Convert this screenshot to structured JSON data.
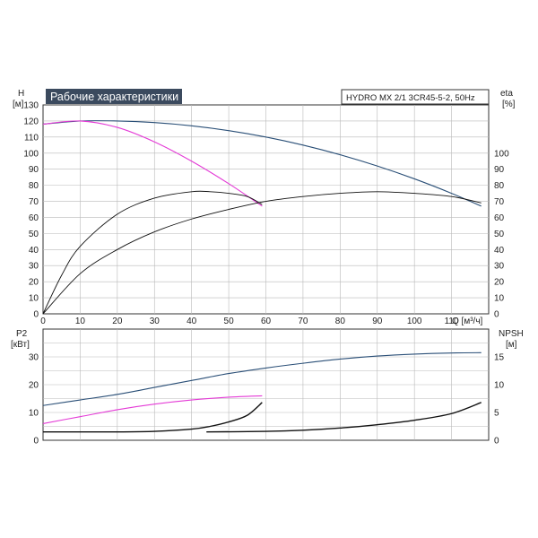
{
  "title": "Рабочие характеристики",
  "model": "HYDRO MX 2/1 3CR45-5-2, 50Hz",
  "colors": {
    "dark_blue": "#2a4f77",
    "magenta": "#e43ad6",
    "black": "#111111",
    "title_bg": "#3b4a5e"
  },
  "chart_data": [
    {
      "type": "line",
      "panel": "top",
      "ylabel_left": [
        "H",
        "[м]"
      ],
      "ylabel_right": [
        "eta",
        "[%]"
      ],
      "xlabel": "Q [м³/ч]",
      "xlim": [
        0,
        120
      ],
      "ylim": [
        0,
        130
      ],
      "ylim_right": [
        0,
        130
      ],
      "x_ticks": [
        0,
        10,
        20,
        30,
        40,
        50,
        60,
        70,
        80,
        90,
        100,
        110
      ],
      "y_ticks_left": [
        0,
        10,
        20,
        30,
        40,
        50,
        60,
        70,
        80,
        90,
        100,
        110,
        120,
        130
      ],
      "y_ticks_right": [
        0,
        10,
        20,
        30,
        40,
        50,
        60,
        70,
        80,
        90,
        100
      ],
      "grid": true,
      "series": [
        {
          "color": "#2a4f77",
          "axis": "left",
          "x": [
            0,
            10,
            20,
            30,
            40,
            50,
            60,
            70,
            80,
            90,
            100,
            110,
            118
          ],
          "y": [
            118,
            120,
            120,
            119,
            117,
            114,
            110,
            105,
            99,
            92,
            84,
            75,
            67
          ]
        },
        {
          "color": "#e43ad6",
          "axis": "left",
          "x": [
            0,
            10,
            20,
            30,
            40,
            50,
            59
          ],
          "y": [
            118,
            120,
            116,
            107,
            95,
            81,
            67
          ]
        },
        {
          "color": "#111111",
          "axis": "right",
          "x": [
            0,
            5,
            10,
            20,
            30,
            40,
            45,
            50,
            55,
            59
          ],
          "y": [
            0,
            24,
            42,
            62,
            72,
            76,
            76,
            75,
            73,
            68
          ]
        },
        {
          "color": "#111111",
          "axis": "right",
          "x": [
            0,
            10,
            20,
            30,
            40,
            50,
            60,
            70,
            80,
            90,
            100,
            110,
            118
          ],
          "y": [
            0,
            25,
            40,
            51,
            59,
            65,
            70,
            73,
            75,
            76,
            75,
            73,
            69
          ]
        }
      ]
    },
    {
      "type": "line",
      "panel": "bottom",
      "ylabel_left": [
        "P2",
        "[кВт]"
      ],
      "ylabel_right": [
        "NPSH",
        "[м]"
      ],
      "xlim": [
        0,
        120
      ],
      "ylim": [
        0,
        40
      ],
      "ylim_right": [
        0,
        20
      ],
      "y_ticks_left": [
        0,
        10,
        20,
        30
      ],
      "y_ticks_right": [
        0,
        5,
        10,
        15
      ],
      "grid": true,
      "series": [
        {
          "color": "#2a4f77",
          "axis": "left",
          "x": [
            0,
            10,
            20,
            30,
            40,
            50,
            60,
            70,
            80,
            90,
            100,
            110,
            118
          ],
          "y": [
            12.5,
            14.5,
            16.5,
            19,
            21.5,
            24,
            26,
            27.7,
            29.2,
            30.3,
            31,
            31.4,
            31.5
          ]
        },
        {
          "color": "#e43ad6",
          "axis": "left",
          "x": [
            0,
            10,
            20,
            30,
            40,
            50,
            59
          ],
          "y": [
            6,
            8.5,
            11,
            13,
            14.5,
            15.5,
            16
          ]
        },
        {
          "color": "#111111",
          "axis": "right",
          "x": [
            0,
            10,
            20,
            30,
            40,
            45,
            50,
            55,
            59
          ],
          "y": [
            1.5,
            1.5,
            1.5,
            1.6,
            2.0,
            2.5,
            3.3,
            4.5,
            6.8
          ]
        },
        {
          "color": "#111111",
          "axis": "right",
          "x": [
            44,
            60,
            70,
            80,
            90,
            100,
            110,
            118
          ],
          "y": [
            1.5,
            1.6,
            1.8,
            2.2,
            2.8,
            3.6,
            4.8,
            6.8
          ]
        }
      ]
    }
  ]
}
